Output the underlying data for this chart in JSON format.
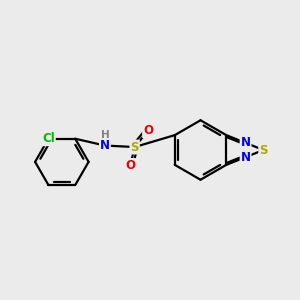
{
  "background_color": "#ebebeb",
  "bond_color": "#000000",
  "atom_colors": {
    "Cl": "#00bb00",
    "N": "#0000ee",
    "S_sulfonamide": "#aaaa00",
    "O": "#ee0000",
    "S_thiadiazole": "#aaaa00",
    "H": "#808080",
    "C": "#000000"
  },
  "bond_width": 1.6,
  "font_size_atoms": 8.5,
  "fig_width": 3.0,
  "fig_height": 3.0,
  "dpi": 100
}
